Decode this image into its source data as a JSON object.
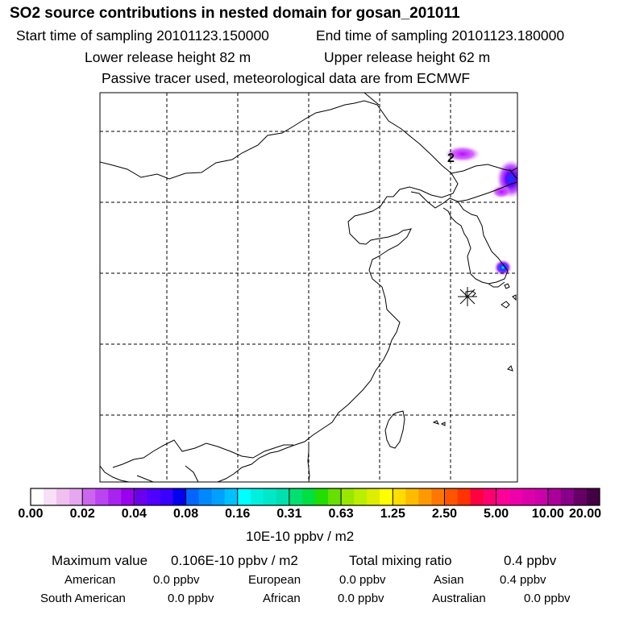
{
  "header": {
    "title": "SO2 source contributions in nested domain for gosan_201011",
    "start_label": "Start time of sampling 20101123.150000",
    "end_label": "End time of sampling 20101123.180000",
    "lower_height": "Lower release height   82 m",
    "upper_height": "Upper release height   62 m",
    "note": "Passive tracer used, meteorological data are from ECMWF"
  },
  "map": {
    "contour_label": "2",
    "receptor": "star-marker"
  },
  "colorbar": {
    "ticks": [
      "0.00",
      "0.02",
      "0.04",
      "0.08",
      "0.16",
      "0.31",
      "0.63",
      "1.25",
      "2.50",
      "5.00",
      "10.00",
      "20.00"
    ],
    "colors": [
      "#ffffff",
      "#f8dff8",
      "#f0c0f0",
      "#e6a6f0",
      "#cc66ee",
      "#bb44f0",
      "#a822f0",
      "#9900ee",
      "#6a00ee",
      "#5000ff",
      "#3a00ff",
      "#0000ee",
      "#0066ff",
      "#0088ff",
      "#00a0ff",
      "#00c0ff",
      "#00ffff",
      "#00f0e0",
      "#00e8c8",
      "#00e0b0",
      "#00e070",
      "#00e040",
      "#22dd00",
      "#66e000",
      "#99e600",
      "#bbee00",
      "#ddee00",
      "#ffff00",
      "#ffdd00",
      "#ffbb00",
      "#ff9900",
      "#ff7700",
      "#ff5500",
      "#ff3300",
      "#ff0040",
      "#ff0070",
      "#ff0099",
      "#ee00aa",
      "#dd00aa",
      "#cc00aa",
      "#aa0099",
      "#880088",
      "#660066",
      "#440044"
    ],
    "units": "10E-10 ppbv / m2"
  },
  "summary": {
    "max_label": "Maximum value",
    "max_value": "0.106E-10 ppbv / m2",
    "total_label": "Total mixing ratio",
    "total_value": "0.4 ppbv",
    "regions": [
      {
        "name": "American",
        "value": "0.0 ppbv"
      },
      {
        "name": "European",
        "value": "0.0 ppbv"
      },
      {
        "name": "Asian",
        "value": "0.4 ppbv"
      },
      {
        "name": "South American",
        "value": "0.0 ppbv"
      },
      {
        "name": "African",
        "value": "0.0 ppbv"
      },
      {
        "name": "Australian",
        "value": "0.0 ppbv"
      }
    ]
  }
}
